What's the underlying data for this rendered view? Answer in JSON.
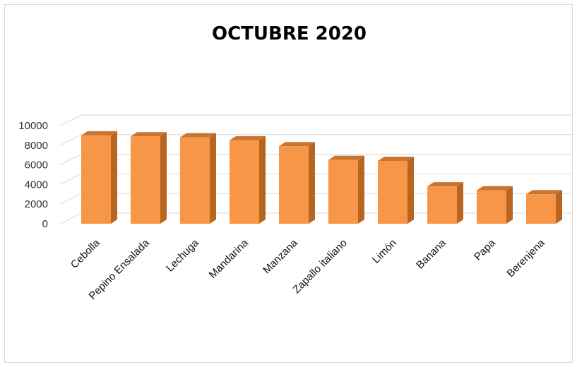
{
  "chart_data": {
    "type": "bar",
    "title": "OCTUBRE 2020",
    "categories": [
      "Cebolla",
      "Pepino Ensalada",
      "Lechuga",
      "Mandarina",
      "Manzana",
      "Zapallo italiano",
      "Limón",
      "Banana",
      "Papa",
      "Berenjena"
    ],
    "values": [
      9000,
      8900,
      8800,
      8500,
      7900,
      6500,
      6400,
      3800,
      3400,
      3000
    ],
    "ylim": [
      0,
      10000
    ],
    "yticks": [
      "0",
      "2000",
      "4000",
      "6000",
      "8000",
      "10000"
    ],
    "grid": true,
    "legend": "none",
    "colors": {
      "bar_front": "#F79646",
      "bar_side": "#B8651F",
      "bar_top": "#C87532",
      "grid": "#d9d9d9"
    }
  }
}
